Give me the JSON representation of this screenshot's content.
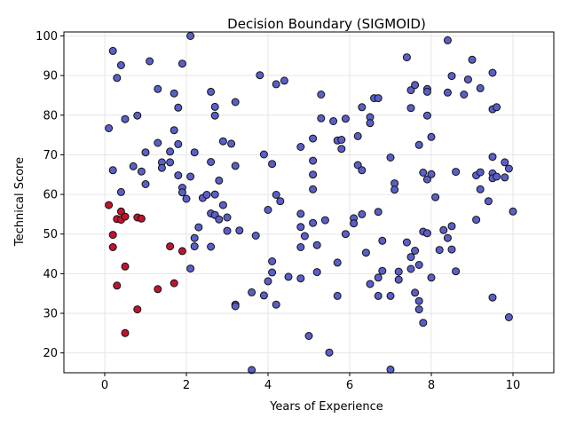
{
  "chart_data": {
    "type": "scatter",
    "title": "Decision Boundary (SIGMOID)",
    "xlabel": "Years of Experience",
    "ylabel": "Technical Score",
    "xlim": [
      -1,
      11
    ],
    "ylim": [
      15,
      101
    ],
    "xticks": [
      "0",
      "2",
      "4",
      "6",
      "8",
      "10"
    ],
    "xtick_values": [
      0,
      2,
      4,
      6,
      8,
      10
    ],
    "yticks": [
      "20",
      "30",
      "40",
      "50",
      "60",
      "70",
      "80",
      "90",
      "100"
    ],
    "ytick_values": [
      20,
      30,
      40,
      50,
      60,
      70,
      80,
      90,
      100
    ],
    "grid": true,
    "background_color": "#ffffff",
    "colors": {
      "class_0": "#c0142e",
      "class_1": "#5a5fc8",
      "edge": "#111111",
      "grid": "#e6e6e6"
    },
    "series": [
      {
        "class": 0,
        "points": [
          [
            0.1,
            57.3
          ],
          [
            0.2,
            49.8
          ],
          [
            0.2,
            46.7
          ],
          [
            0.3,
            53.8
          ],
          [
            0.3,
            37.0
          ],
          [
            0.4,
            55.7
          ],
          [
            0.4,
            53.6
          ],
          [
            0.5,
            54.4
          ],
          [
            0.5,
            41.8
          ],
          [
            0.5,
            25.0
          ],
          [
            0.8,
            54.2
          ],
          [
            0.8,
            31.0
          ],
          [
            0.9,
            53.9
          ],
          [
            1.3,
            36.1
          ],
          [
            1.6,
            46.9
          ],
          [
            1.7,
            37.6
          ],
          [
            1.9,
            45.7
          ]
        ]
      },
      {
        "class": 1,
        "points": [
          [
            0.1,
            76.7
          ],
          [
            0.2,
            96.2
          ],
          [
            0.2,
            66.1
          ],
          [
            0.3,
            89.4
          ],
          [
            0.4,
            92.6
          ],
          [
            0.4,
            60.6
          ],
          [
            0.5,
            79.0
          ],
          [
            0.7,
            67.1
          ],
          [
            0.8,
            79.9
          ],
          [
            0.9,
            65.8
          ],
          [
            1.0,
            70.6
          ],
          [
            1.0,
            62.6
          ],
          [
            1.1,
            93.6
          ],
          [
            1.3,
            86.6
          ],
          [
            1.3,
            73.0
          ],
          [
            1.4,
            68.1
          ],
          [
            1.4,
            66.7
          ],
          [
            1.6,
            70.8
          ],
          [
            1.6,
            68.1
          ],
          [
            1.7,
            85.5
          ],
          [
            1.7,
            76.2
          ],
          [
            1.8,
            81.9
          ],
          [
            1.8,
            72.7
          ],
          [
            1.8,
            64.8
          ],
          [
            1.9,
            93.0
          ],
          [
            1.9,
            61.7
          ],
          [
            1.9,
            60.5
          ],
          [
            2.0,
            58.9
          ],
          [
            2.1,
            100.0
          ],
          [
            2.1,
            64.5
          ],
          [
            2.1,
            41.3
          ],
          [
            2.2,
            70.6
          ],
          [
            2.2,
            49.0
          ],
          [
            2.2,
            46.9
          ],
          [
            2.3,
            51.7
          ],
          [
            2.4,
            59.1
          ],
          [
            2.5,
            59.9
          ],
          [
            2.6,
            85.9
          ],
          [
            2.6,
            68.2
          ],
          [
            2.6,
            55.2
          ],
          [
            2.6,
            46.8
          ],
          [
            2.7,
            82.1
          ],
          [
            2.7,
            79.9
          ],
          [
            2.7,
            60.0
          ],
          [
            2.7,
            54.8
          ],
          [
            2.8,
            63.5
          ],
          [
            2.8,
            53.7
          ],
          [
            2.9,
            73.4
          ],
          [
            2.9,
            57.3
          ],
          [
            3.0,
            54.2
          ],
          [
            3.0,
            50.8
          ],
          [
            3.1,
            72.8
          ],
          [
            3.2,
            83.3
          ],
          [
            3.2,
            67.2
          ],
          [
            3.2,
            32.2
          ],
          [
            3.2,
            31.8
          ],
          [
            3.3,
            50.9
          ],
          [
            3.6,
            35.3
          ],
          [
            3.6,
            15.7
          ],
          [
            3.7,
            49.6
          ],
          [
            3.8,
            90.1
          ],
          [
            3.9,
            70.1
          ],
          [
            3.9,
            34.5
          ],
          [
            4.0,
            56.1
          ],
          [
            4.0,
            38.1
          ],
          [
            4.1,
            67.7
          ],
          [
            4.1,
            43.1
          ],
          [
            4.1,
            40.3
          ],
          [
            4.2,
            87.8
          ],
          [
            4.2,
            59.9
          ],
          [
            4.2,
            32.2
          ],
          [
            4.3,
            58.3
          ],
          [
            4.4,
            88.7
          ],
          [
            4.5,
            39.2
          ],
          [
            4.8,
            72.0
          ],
          [
            4.8,
            55.1
          ],
          [
            4.8,
            51.8
          ],
          [
            4.8,
            46.7
          ],
          [
            4.8,
            38.8
          ],
          [
            4.9,
            49.5
          ],
          [
            5.0,
            24.3
          ],
          [
            5.1,
            74.1
          ],
          [
            5.1,
            68.5
          ],
          [
            5.1,
            65.0
          ],
          [
            5.1,
            61.3
          ],
          [
            5.1,
            52.8
          ],
          [
            5.2,
            47.2
          ],
          [
            5.2,
            40.4
          ],
          [
            5.3,
            85.2
          ],
          [
            5.3,
            79.2
          ],
          [
            5.4,
            53.5
          ],
          [
            5.5,
            20.1
          ],
          [
            5.6,
            78.5
          ],
          [
            5.7,
            73.6
          ],
          [
            5.7,
            42.8
          ],
          [
            5.7,
            34.4
          ],
          [
            5.8,
            73.8
          ],
          [
            5.8,
            71.5
          ],
          [
            5.9,
            79.1
          ],
          [
            5.9,
            50.0
          ],
          [
            6.1,
            54.0
          ],
          [
            6.1,
            52.7
          ],
          [
            6.2,
            74.7
          ],
          [
            6.2,
            67.4
          ],
          [
            6.3,
            82.0
          ],
          [
            6.3,
            66.1
          ],
          [
            6.3,
            55.0
          ],
          [
            6.4,
            45.3
          ],
          [
            6.5,
            79.5
          ],
          [
            6.5,
            78.0
          ],
          [
            6.5,
            37.4
          ],
          [
            6.6,
            84.3
          ],
          [
            6.7,
            84.3
          ],
          [
            6.7,
            55.6
          ],
          [
            6.7,
            39.0
          ],
          [
            6.7,
            34.4
          ],
          [
            6.8,
            48.3
          ],
          [
            6.8,
            40.7
          ],
          [
            7.0,
            69.3
          ],
          [
            7.0,
            34.4
          ],
          [
            7.0,
            15.8
          ],
          [
            7.1,
            62.8
          ],
          [
            7.1,
            61.2
          ],
          [
            7.2,
            40.5
          ],
          [
            7.2,
            38.5
          ],
          [
            7.4,
            94.6
          ],
          [
            7.4,
            47.9
          ],
          [
            7.5,
            86.3
          ],
          [
            7.5,
            81.8
          ],
          [
            7.5,
            44.2
          ],
          [
            7.5,
            41.2
          ],
          [
            7.6,
            87.6
          ],
          [
            7.6,
            45.8
          ],
          [
            7.6,
            35.2
          ],
          [
            7.7,
            72.5
          ],
          [
            7.7,
            42.2
          ],
          [
            7.7,
            33.1
          ],
          [
            7.7,
            31.0
          ],
          [
            7.8,
            65.5
          ],
          [
            7.8,
            50.6
          ],
          [
            7.8,
            27.6
          ],
          [
            7.9,
            86.6
          ],
          [
            7.9,
            85.9
          ],
          [
            7.9,
            79.9
          ],
          [
            7.9,
            63.8
          ],
          [
            7.9,
            50.2
          ],
          [
            8.0,
            74.5
          ],
          [
            8.0,
            65.1
          ],
          [
            8.0,
            39.0
          ],
          [
            8.1,
            59.3
          ],
          [
            8.2,
            46.0
          ],
          [
            8.3,
            51.0
          ],
          [
            8.4,
            98.9
          ],
          [
            8.4,
            85.7
          ],
          [
            8.4,
            49.0
          ],
          [
            8.5,
            89.9
          ],
          [
            8.5,
            52.0
          ],
          [
            8.5,
            46.1
          ],
          [
            8.6,
            65.7
          ],
          [
            8.6,
            40.6
          ],
          [
            8.8,
            85.2
          ],
          [
            8.9,
            89.0
          ],
          [
            9.0,
            94.0
          ],
          [
            9.1,
            64.8
          ],
          [
            9.1,
            53.6
          ],
          [
            9.2,
            86.8
          ],
          [
            9.2,
            65.6
          ],
          [
            9.2,
            61.3
          ],
          [
            9.4,
            58.3
          ],
          [
            9.5,
            90.7
          ],
          [
            9.5,
            81.5
          ],
          [
            9.5,
            69.5
          ],
          [
            9.5,
            65.3
          ],
          [
            9.5,
            64.1
          ],
          [
            9.5,
            34.0
          ],
          [
            9.6,
            82.0
          ],
          [
            9.6,
            64.5
          ],
          [
            9.8,
            68.1
          ],
          [
            9.8,
            64.3
          ],
          [
            9.9,
            66.5
          ],
          [
            9.9,
            29.0
          ],
          [
            10.0,
            55.7
          ]
        ]
      }
    ]
  }
}
